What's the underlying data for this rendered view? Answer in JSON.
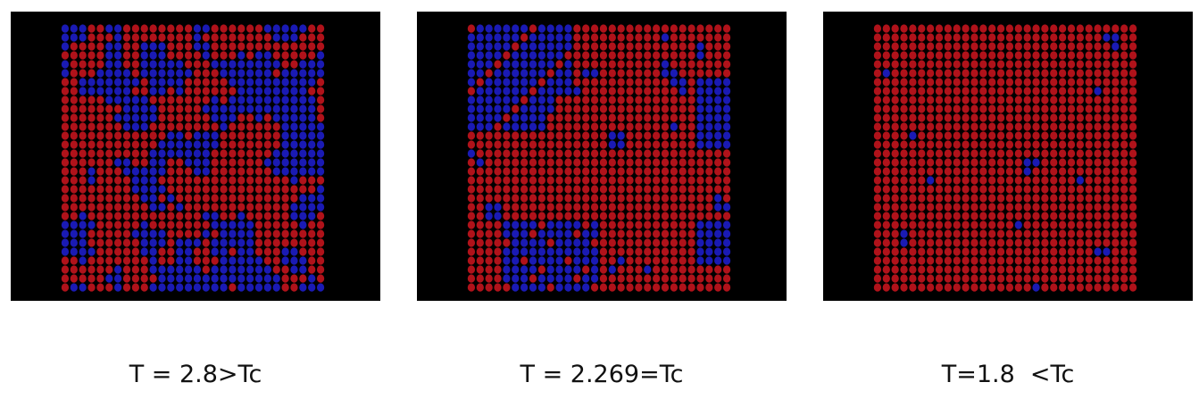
{
  "colors": {
    "spin_up": "#b0121a",
    "spin_down": "#1a1ab4",
    "background": "#000000"
  },
  "panels": [
    {
      "caption": "T = 2.8>Tc",
      "temperature": 2.8,
      "relation": ">Tc",
      "magnetization": 0.0
    },
    {
      "caption": "T = 2.269=Tc",
      "temperature": 2.269,
      "relation": "=Tc",
      "magnetization": 0.55
    },
    {
      "caption": "T=1.8  <Tc",
      "temperature": 1.8,
      "relation": "<Tc",
      "magnetization": 0.96
    }
  ]
}
